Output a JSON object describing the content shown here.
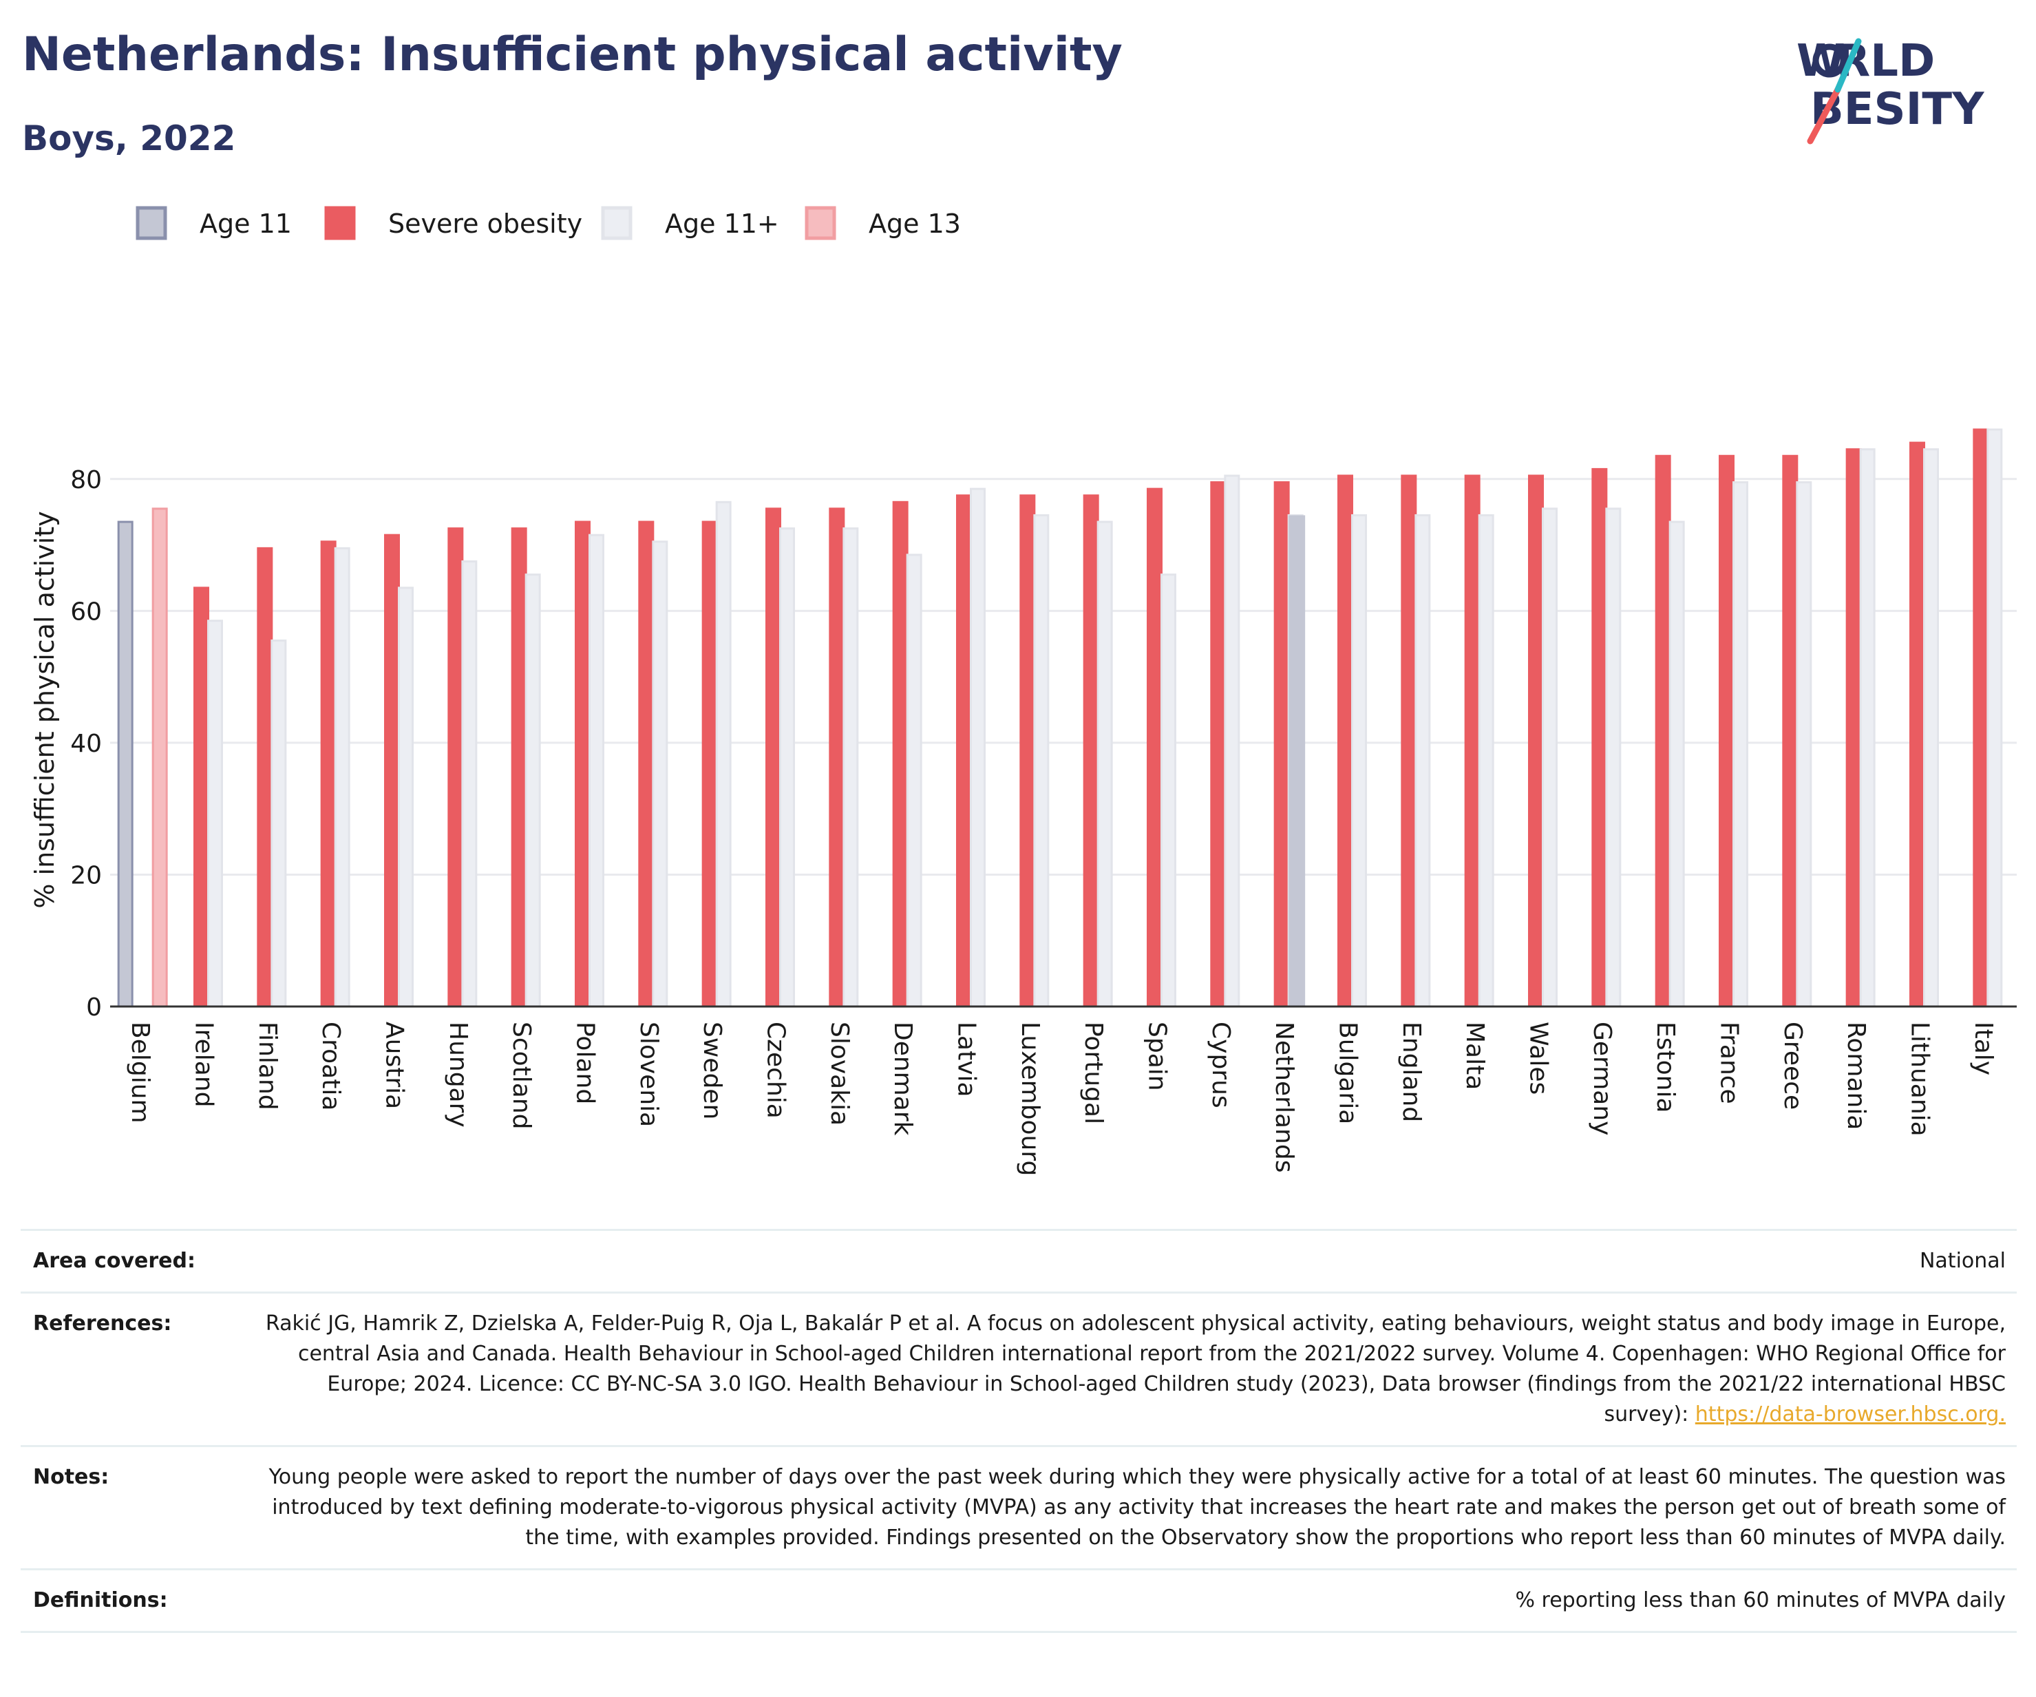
{
  "title": "Netherlands: Insufficient physical activity",
  "subtitle": "Boys, 2022",
  "logo": {
    "line1": "WORLD",
    "line2": "OBESITY",
    "colors": {
      "text": "#2b3463",
      "accent1": "#2bb8c4",
      "accent2": "#ef5a5a"
    }
  },
  "colors": {
    "age11": "#c4c7d4",
    "age11_stroke": "#8a90ac",
    "severe_obesity": "#ea5c61",
    "age11plus": "#eceef3",
    "age13": "#f6bcbf",
    "age13_stroke": "#f19ea2",
    "grid": "#e9eaee",
    "axis": "#333333"
  },
  "chart_data": {
    "type": "bar",
    "ylabel": "% insufficient physical activity",
    "ylim": [
      0,
      90
    ],
    "yticks": [
      0,
      20,
      40,
      60,
      80
    ],
    "grid": true,
    "legend_position": "top-left",
    "legend": [
      "Age 11",
      "Severe obesity",
      "Age 11+",
      "Age 13"
    ],
    "categories": [
      "Belgium",
      "Ireland",
      "Finland",
      "Croatia",
      "Austria",
      "Hungary",
      "Scotland",
      "Poland",
      "Slovenia",
      "Sweden",
      "Czechia",
      "Slovakia",
      "Denmark",
      "Latvia",
      "Luxembourg",
      "Portugal",
      "Spain",
      "Cyprus",
      "Netherlands",
      "Bulgaria",
      "England",
      "Malta",
      "Wales",
      "Germany",
      "Estonia",
      "France",
      "Greece",
      "Romania",
      "Lithuania",
      "Italy"
    ],
    "series": [
      {
        "name": "Age 11",
        "values": [
          73.5,
          null,
          null,
          null,
          null,
          null,
          null,
          null,
          null,
          null,
          null,
          null,
          null,
          null,
          null,
          null,
          null,
          null,
          null,
          null,
          null,
          null,
          null,
          null,
          null,
          null,
          null,
          null,
          null,
          null
        ]
      },
      {
        "name": "Age 13",
        "values": [
          75.5,
          null,
          null,
          null,
          null,
          null,
          null,
          null,
          null,
          null,
          null,
          null,
          null,
          null,
          null,
          null,
          null,
          null,
          null,
          null,
          null,
          null,
          null,
          null,
          null,
          null,
          null,
          null,
          null,
          null
        ]
      },
      {
        "name": "Severe obesity",
        "values": [
          null,
          63.5,
          69.5,
          70.5,
          71.5,
          72.5,
          72.5,
          73.5,
          73.5,
          73.5,
          75.5,
          75.5,
          76.5,
          77.5,
          77.5,
          77.5,
          78.5,
          79.5,
          79.5,
          80.5,
          80.5,
          80.5,
          80.5,
          81.5,
          83.5,
          83.5,
          83.5,
          84.5,
          85.5,
          87.5
        ]
      },
      {
        "name": "Age 11+",
        "values": [
          null,
          58.5,
          55.5,
          69.5,
          63.5,
          67.5,
          65.5,
          71.5,
          70.5,
          76.5,
          72.5,
          72.5,
          68.5,
          78.5,
          74.5,
          73.5,
          65.5,
          80.5,
          74.5,
          74.5,
          74.5,
          74.5,
          75.5,
          75.5,
          73.5,
          79.5,
          79.5,
          84.5,
          84.5,
          87.5
        ]
      }
    ]
  },
  "info": [
    {
      "label": "Area covered:",
      "value": "National"
    },
    {
      "label": "References:",
      "value": "Rakić JG, Hamrik Z, Dzielska A, Felder-Puig R, Oja L, Bakalár P et al. A focus on adolescent physical activity, eating behaviours, weight status and body image in Europe, central Asia and Canada. Health Behaviour in School-aged Children international report from the 2021/2022 survey. Volume 4. Copenhagen: WHO Regional Office for Europe; 2024. Licence: CC BY-NC-SA 3.0 IGO. Health Behaviour in School-aged Children study (2023), Data browser (findings from the 2021/22 international HBSC survey): ",
      "link": "https://data-browser.hbsc.org."
    },
    {
      "label": "Notes:",
      "value": "Young people were asked to report the number of days over the past week during which they were physically active for a total of at least 60 minutes. The question was introduced by text defining moderate-to-vigorous physical activity (MVPA) as any activity that increases the heart rate and makes the person get out of breath some of the time, with examples provided. Findings presented on the Observatory show the proportions who report less than 60 minutes of MVPA daily."
    },
    {
      "label": "Definitions:",
      "value": "% reporting less than 60 minutes of MVPA daily"
    }
  ]
}
